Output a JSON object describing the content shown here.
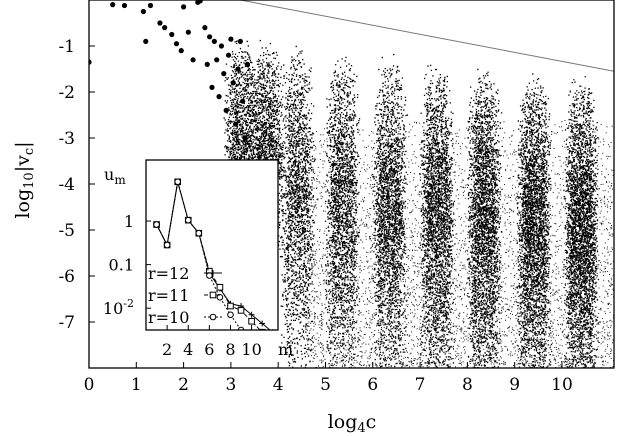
{
  "chart_data": [
    {
      "type": "scatter",
      "xlabel": "log",
      "xlabel_sub": "4",
      "xlabel_suffix": "c",
      "ylabel": "log",
      "ylabel_sub": "10",
      "ylabel_suffix": "|v",
      "ylabel_sub2": "c",
      "ylabel_end": "|",
      "xlim": [
        0,
        11.1
      ],
      "ylim": [
        -8,
        0
      ],
      "x_ticks": [
        "0",
        "1",
        "2",
        "3",
        "4",
        "5",
        "6",
        "7",
        "8",
        "9",
        "10"
      ],
      "y_ticks": [
        "-1",
        "-2",
        "-3",
        "-4",
        "-5",
        "-6",
        "-7"
      ],
      "envelope_line": {
        "x": [
          3.2,
          11.1
        ],
        "y": [
          0.0,
          -1.55
        ]
      },
      "sparse_points": [
        [
          0.0,
          -1.35
        ],
        [
          0.5,
          -0.1
        ],
        [
          0.75,
          -0.12
        ],
        [
          1.15,
          -0.25
        ],
        [
          1.3,
          -0.12
        ],
        [
          1.2,
          -0.9
        ],
        [
          1.5,
          -0.5
        ],
        [
          1.6,
          -0.6
        ],
        [
          1.75,
          -0.75
        ],
        [
          1.85,
          -0.95
        ],
        [
          1.95,
          -1.1
        ],
        [
          2.0,
          -0.15
        ],
        [
          2.1,
          -0.7
        ],
        [
          2.2,
          -1.3
        ],
        [
          2.3,
          -0.05
        ],
        [
          2.35,
          -0.02
        ],
        [
          2.45,
          -0.6
        ],
        [
          2.5,
          -1.4
        ],
        [
          2.55,
          -0.8
        ],
        [
          2.6,
          -1.9
        ],
        [
          2.65,
          -0.9
        ],
        [
          2.7,
          -1.3
        ],
        [
          2.75,
          -2.1
        ],
        [
          2.8,
          -1.0
        ],
        [
          2.85,
          -1.6
        ],
        [
          2.9,
          -2.4
        ],
        [
          2.95,
          -1.2
        ],
        [
          3.0,
          -0.85
        ],
        [
          3.05,
          -1.8
        ],
        [
          3.1,
          -2.7
        ],
        [
          3.15,
          -1.5
        ],
        [
          3.2,
          -0.9
        ],
        [
          3.25,
          -2.2
        ],
        [
          3.3,
          -3.0
        ],
        [
          3.35,
          -1.4
        ]
      ],
      "band_centers": [
        3.2,
        3.75,
        4.4,
        5.35,
        6.35,
        7.35,
        8.35,
        9.4,
        10.4
      ],
      "band_width": 0.75
    },
    {
      "type": "line",
      "ylabel": "u",
      "ylabel_sub": "m",
      "xlabel": "m",
      "xlim": [
        0,
        12.5
      ],
      "ylim_log10": [
        -2.5,
        1.4
      ],
      "x_ticks": [
        "2",
        "4",
        "6",
        "8",
        "10"
      ],
      "y_ticks": [
        "1",
        "0.1",
        "10-2"
      ],
      "y_tick_values_log10": [
        0,
        -1,
        -2
      ],
      "series": [
        {
          "name": "r=12",
          "marker": "plus",
          "x": [
            1,
            2,
            3,
            4,
            5,
            6,
            7,
            8,
            9,
            10,
            11,
            12
          ],
          "log10_y": [
            -0.08,
            -0.55,
            0.9,
            0.02,
            -0.28,
            -1.2,
            -1.55,
            -1.9,
            -1.95,
            -2.15,
            -2.35,
            -2.55
          ]
        },
        {
          "name": "r=11",
          "marker": "square",
          "x": [
            1,
            2,
            3,
            4,
            5,
            6,
            7,
            8,
            9,
            10,
            11
          ],
          "log10_y": [
            -0.08,
            -0.55,
            0.9,
            0.02,
            -0.28,
            -1.15,
            -1.52,
            -1.95,
            -2.05,
            -2.3,
            -2.55
          ]
        },
        {
          "name": "r=10",
          "marker": "circle",
          "x": [
            1,
            2,
            3,
            4,
            5,
            6,
            7,
            8,
            9,
            10
          ],
          "log10_y": [
            -0.08,
            -0.55,
            0.9,
            0.02,
            -0.28,
            -1.25,
            -1.75,
            -2.15,
            -2.5,
            -2.7
          ]
        }
      ]
    }
  ]
}
